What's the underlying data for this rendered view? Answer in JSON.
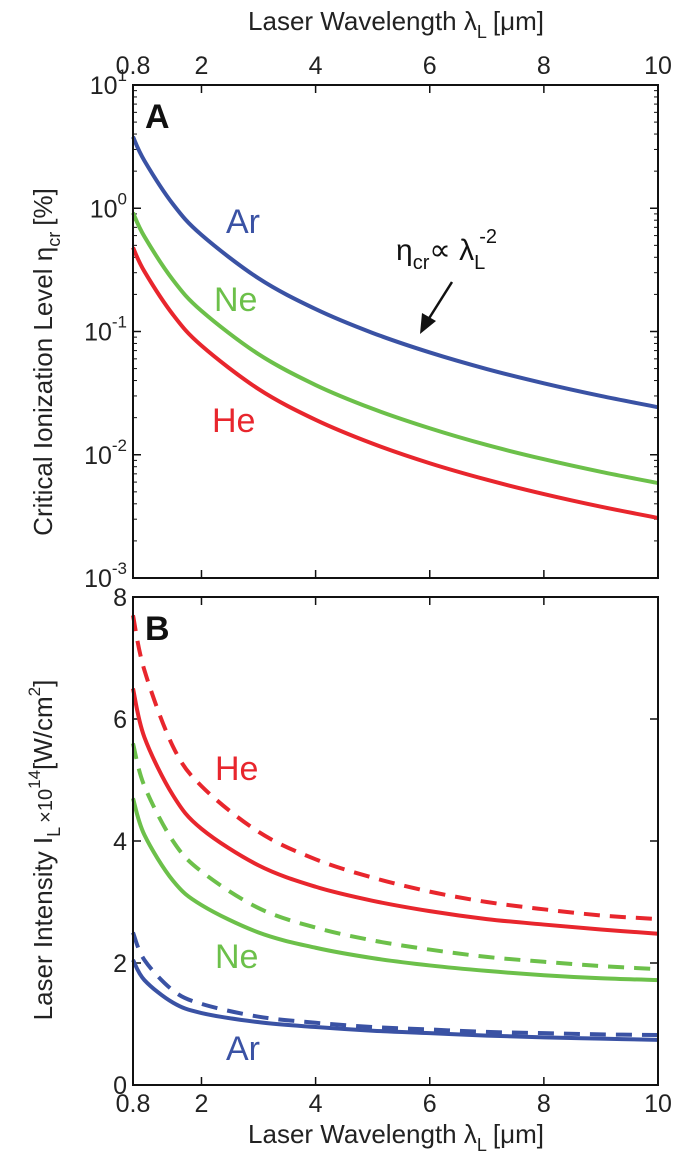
{
  "figure": {
    "top_xlabel": "Laser Wavelength λ",
    "top_xlabel_sub": "L",
    "top_xlabel_unit": "[μm]",
    "bottom_xlabel": "Laser Wavelength λ",
    "bottom_xlabel_sub": "L",
    "bottom_xlabel_unit": "[μm]"
  },
  "colors": {
    "Ar": "#3a52a4",
    "Ne": "#6cc04a",
    "He": "#e8262d",
    "axis": "#111111"
  },
  "chart_data": [
    {
      "panel": "A",
      "type": "line",
      "ylabel": "Critical Ionization Level η",
      "ylabel_sub": "cr",
      "ylabel_unit": "[%]",
      "yscale": "log",
      "xlim": [
        0.8,
        10
      ],
      "ylim": [
        0.001,
        10
      ],
      "xticks": [
        0.8,
        2,
        4,
        6,
        8,
        10
      ],
      "xtick_labels": [
        "0.8",
        "2",
        "4",
        "6",
        "8",
        "10"
      ],
      "yticks": [
        0.001,
        0.01,
        0.1,
        1,
        10
      ],
      "ytick_labels": [
        {
          "base": "10",
          "exp": "-3"
        },
        {
          "base": "10",
          "exp": "-2"
        },
        {
          "base": "10",
          "exp": "-1"
        },
        {
          "base": "10",
          "exp": "0"
        },
        {
          "base": "10",
          "exp": "1"
        }
      ],
      "series": [
        {
          "name": "Ar",
          "x": [
            0.8,
            1,
            1.5,
            2,
            3,
            4,
            5,
            6,
            7,
            8,
            9,
            10
          ],
          "y": [
            3.8,
            2.43,
            1.08,
            0.608,
            0.27,
            0.152,
            0.0973,
            0.0676,
            0.0496,
            0.038,
            0.03,
            0.0243
          ]
        },
        {
          "name": "Ne",
          "x": [
            0.8,
            1,
            1.5,
            2,
            3,
            4,
            5,
            6,
            7,
            8,
            9,
            10
          ],
          "y": [
            0.92,
            0.589,
            0.262,
            0.147,
            0.0654,
            0.0368,
            0.0236,
            0.0164,
            0.012,
            0.0092,
            0.00727,
            0.00589
          ]
        },
        {
          "name": "He",
          "x": [
            0.8,
            1,
            1.5,
            2,
            3,
            4,
            5,
            6,
            7,
            8,
            9,
            10
          ],
          "y": [
            0.48,
            0.307,
            0.137,
            0.0768,
            0.0341,
            0.0192,
            0.0123,
            0.00853,
            0.00627,
            0.0048,
            0.00379,
            0.00307
          ]
        }
      ],
      "annotation": {
        "text": "η",
        "sub": "cr",
        "mid": "∝ λ",
        "sub2": "L",
        "sup": "-2",
        "points_to": {
          "x": 5.8,
          "y": 0.072
        }
      }
    },
    {
      "panel": "B",
      "type": "line",
      "ylabel": "Laser Intensity I",
      "ylabel_sub": "L",
      "ylabel_mid": "×10",
      "ylabel_sup": "14",
      "ylabel_unit": "[W/cm",
      "ylabel_unit_sup": "2",
      "ylabel_unit_end": "]",
      "xlim": [
        0.8,
        10
      ],
      "ylim": [
        0,
        8
      ],
      "xticks": [
        0.8,
        2,
        4,
        6,
        8,
        10
      ],
      "xtick_labels": [
        "0.8",
        "2",
        "4",
        "6",
        "8",
        "10"
      ],
      "yticks": [
        0,
        2,
        4,
        6,
        8
      ],
      "ytick_labels": [
        "0",
        "2",
        "4",
        "6",
        "8"
      ],
      "series": [
        {
          "name": "He",
          "style": "solid",
          "x": [
            0.8,
            1,
            1.5,
            2,
            3,
            4,
            5,
            6,
            7,
            8,
            9,
            10
          ],
          "y": [
            6.5,
            5.7,
            4.75,
            4.2,
            3.6,
            3.25,
            3.02,
            2.85,
            2.72,
            2.63,
            2.55,
            2.48
          ]
        },
        {
          "name": "He",
          "style": "dashed",
          "x": [
            0.8,
            1,
            1.5,
            2,
            3,
            4,
            5,
            6,
            7,
            8,
            9,
            10
          ],
          "y": [
            7.7,
            6.8,
            5.55,
            4.9,
            4.15,
            3.7,
            3.4,
            3.17,
            3.0,
            2.88,
            2.78,
            2.72
          ]
        },
        {
          "name": "Ne",
          "style": "solid",
          "x": [
            0.8,
            1,
            1.5,
            2,
            3,
            4,
            5,
            6,
            7,
            8,
            9,
            10
          ],
          "y": [
            4.7,
            4.1,
            3.35,
            2.95,
            2.5,
            2.25,
            2.08,
            1.96,
            1.87,
            1.8,
            1.75,
            1.72
          ]
        },
        {
          "name": "Ne",
          "style": "dashed",
          "x": [
            0.8,
            1,
            1.5,
            2,
            3,
            4,
            5,
            6,
            7,
            8,
            9,
            10
          ],
          "y": [
            5.6,
            4.9,
            4.0,
            3.5,
            2.9,
            2.58,
            2.37,
            2.22,
            2.1,
            2.02,
            1.95,
            1.9
          ]
        },
        {
          "name": "Ar",
          "style": "solid",
          "x": [
            0.8,
            1,
            1.5,
            2,
            3,
            4,
            5,
            6,
            7,
            8,
            9,
            10
          ],
          "y": [
            2.05,
            1.72,
            1.35,
            1.18,
            1.03,
            0.95,
            0.89,
            0.85,
            0.81,
            0.78,
            0.76,
            0.74
          ]
        },
        {
          "name": "Ar",
          "style": "dashed",
          "x": [
            0.8,
            1,
            1.5,
            2,
            3,
            4,
            5,
            6,
            7,
            8,
            9,
            10
          ],
          "y": [
            2.5,
            2.05,
            1.55,
            1.33,
            1.12,
            1.02,
            0.95,
            0.91,
            0.87,
            0.85,
            0.83,
            0.82
          ]
        }
      ]
    }
  ]
}
